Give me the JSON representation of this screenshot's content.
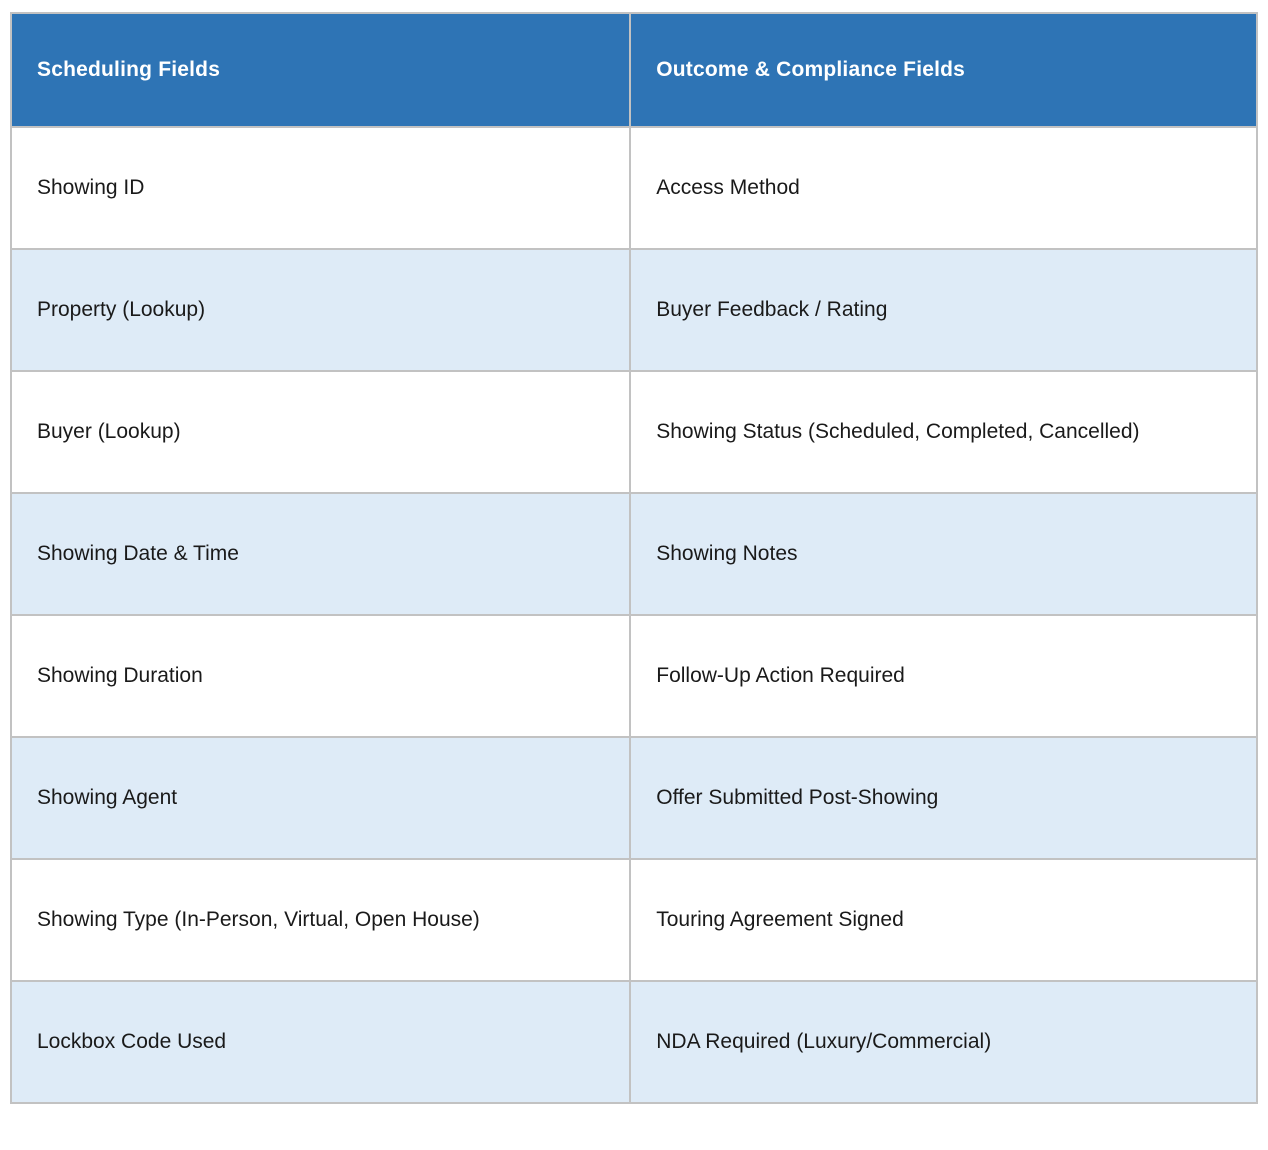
{
  "table": {
    "name": "showing-fields-table",
    "columns": [
      {
        "header": "Scheduling Fields"
      },
      {
        "header": "Outcome & Compliance Fields"
      }
    ],
    "rows": [
      {
        "scheduling": "Showing ID",
        "outcome": "Access Method"
      },
      {
        "scheduling": "Property (Lookup)",
        "outcome": "Buyer Feedback / Rating"
      },
      {
        "scheduling": "Buyer (Lookup)",
        "outcome": "Showing Status (Scheduled, Completed, Cancelled)"
      },
      {
        "scheduling": "Showing Date & Time",
        "outcome": "Showing Notes"
      },
      {
        "scheduling": "Showing Duration",
        "outcome": "Follow-Up Action Required"
      },
      {
        "scheduling": "Showing Agent",
        "outcome": "Offer Submitted Post-Showing"
      },
      {
        "scheduling": "Showing Type (In-Person, Virtual, Open House)",
        "outcome": "Touring Agreement Signed"
      },
      {
        "scheduling": "Lockbox Code Used",
        "outcome": "NDA Required (Luxury/Commercial)"
      }
    ],
    "colors": {
      "header_bg": "#2E74B5",
      "header_text": "#FFFFFF",
      "band_row_bg": "#DEEBF7",
      "row_bg": "#FFFFFF",
      "border": "#C2C2C2",
      "body_text": "#1A1A1A"
    }
  }
}
